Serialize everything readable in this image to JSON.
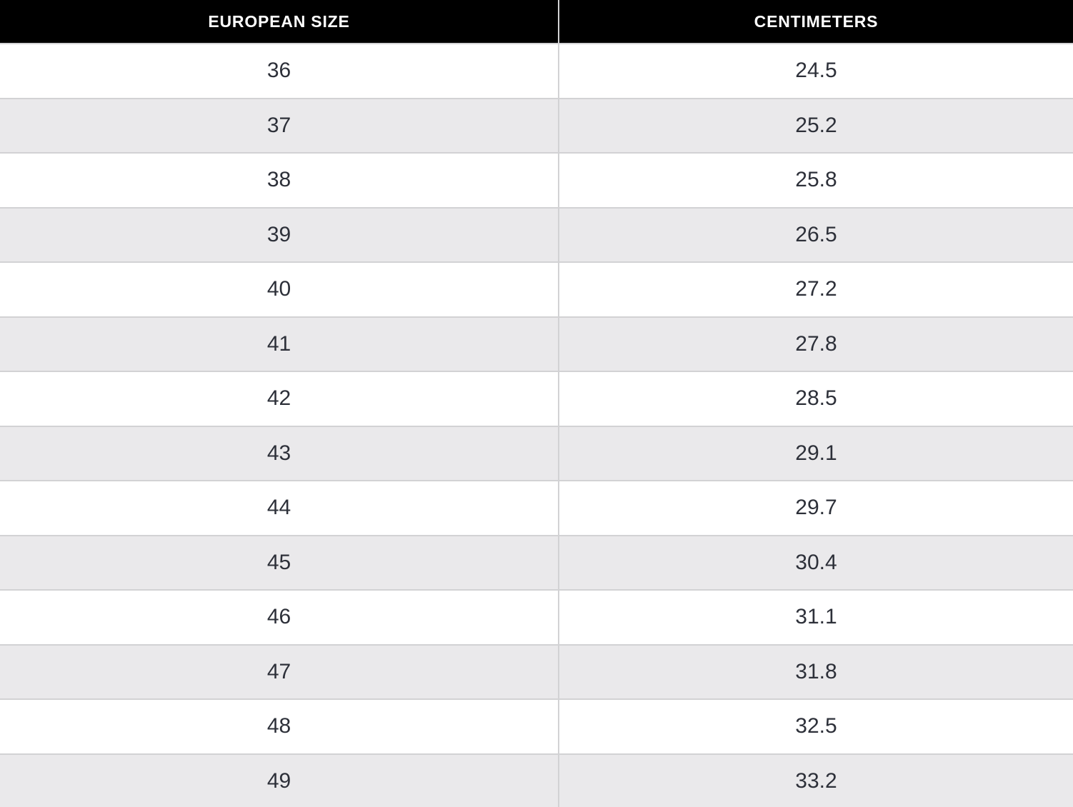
{
  "table": {
    "headers": [
      "EUROPEAN SIZE",
      "CENTIMETERS"
    ],
    "rows": [
      {
        "eu": "36",
        "cm": "24.5"
      },
      {
        "eu": "37",
        "cm": "25.2"
      },
      {
        "eu": "38",
        "cm": "25.8"
      },
      {
        "eu": "39",
        "cm": "26.5"
      },
      {
        "eu": "40",
        "cm": "27.2"
      },
      {
        "eu": "41",
        "cm": "27.8"
      },
      {
        "eu": "42",
        "cm": "28.5"
      },
      {
        "eu": "43",
        "cm": "29.1"
      },
      {
        "eu": "44",
        "cm": "29.7"
      },
      {
        "eu": "45",
        "cm": "30.4"
      },
      {
        "eu": "46",
        "cm": "31.1"
      },
      {
        "eu": "47",
        "cm": "31.8"
      },
      {
        "eu": "48",
        "cm": "32.5"
      },
      {
        "eu": "49",
        "cm": "33.2"
      }
    ]
  },
  "colors": {
    "header_bg": "#000000",
    "header_text": "#ffffff",
    "row_bg": "#ffffff",
    "row_alt_bg": "#eae9eb",
    "grid_border": "#d2d2d4",
    "cell_text": "#2d3039"
  },
  "chart_data": {
    "type": "table",
    "title": "European shoe size to centimeters conversion",
    "columns": [
      "EUROPEAN SIZE",
      "CENTIMETERS"
    ],
    "european_sizes": [
      36,
      37,
      38,
      39,
      40,
      41,
      42,
      43,
      44,
      45,
      46,
      47,
      48,
      49
    ],
    "centimeters": [
      24.5,
      25.2,
      25.8,
      26.5,
      27.2,
      27.8,
      28.5,
      29.1,
      29.7,
      30.4,
      31.1,
      31.8,
      32.5,
      33.2
    ],
    "layout": {
      "zebra_striping": true,
      "header_style": "black-on-white",
      "last_row_clipped": true
    }
  }
}
